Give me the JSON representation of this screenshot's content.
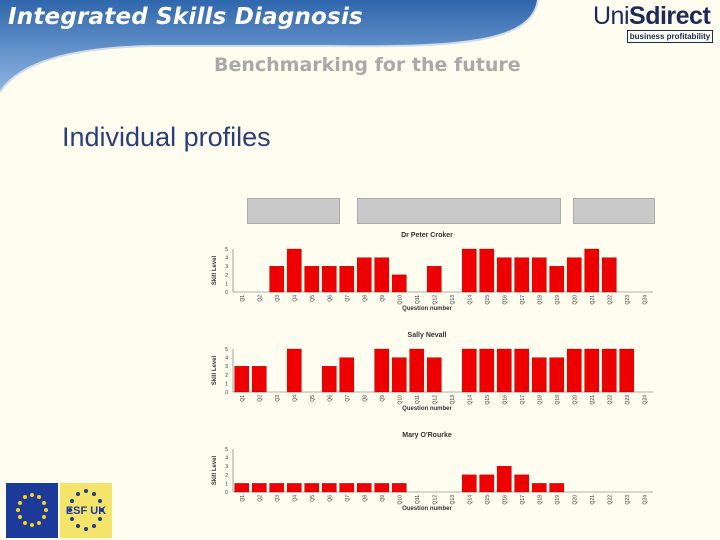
{
  "header": {
    "title": "Integrated Skills Diagnosis",
    "subtitle": "Benchmarking for the future",
    "logo_left": "Uni",
    "logo_right": "Sdirect",
    "tagline": "business profitability"
  },
  "page": {
    "heading": "Individual profiles"
  },
  "colors": {
    "bar": "#ee0000",
    "banner": "#3a74b8",
    "heading": "#2a3f7a"
  },
  "chart_data": [
    {
      "type": "bar",
      "title": "Dr Peter Croker",
      "xlabel": "Question number",
      "ylabel": "Skill Level",
      "ylim": [
        0,
        5
      ],
      "yticks": [
        "0",
        "1",
        "2",
        "3",
        "4",
        "5"
      ],
      "categories": [
        "Q1",
        "Q2",
        "Q3",
        "Q4",
        "Q5",
        "Q6",
        "Q7",
        "Q8",
        "Q9",
        "Q10",
        "Q11",
        "Q12",
        "Q13",
        "Q14",
        "Q15",
        "Q16",
        "Q17",
        "Q18",
        "Q19",
        "Q20",
        "Q21",
        "Q22",
        "Q23",
        "Q24"
      ],
      "values": [
        0,
        0,
        3,
        5,
        3,
        3,
        3,
        4,
        4,
        2,
        0,
        3,
        0,
        5,
        5,
        4,
        4,
        4,
        3,
        4,
        5,
        4,
        0,
        0
      ]
    },
    {
      "type": "bar",
      "title": "Sally Nevall",
      "xlabel": "Question number",
      "ylabel": "Skill Level",
      "ylim": [
        0,
        5
      ],
      "yticks": [
        "0",
        "1",
        "2",
        "3",
        "4",
        "5"
      ],
      "categories": [
        "Q1",
        "Q2",
        "Q3",
        "Q4",
        "Q5",
        "Q6",
        "Q7",
        "Q8",
        "Q9",
        "Q10",
        "Q11",
        "Q12",
        "Q13",
        "Q14",
        "Q15",
        "Q16",
        "Q17",
        "Q18",
        "Q19",
        "Q20",
        "Q21",
        "Q22",
        "Q23",
        "Q24"
      ],
      "values": [
        3,
        3,
        0,
        5,
        0,
        3,
        4,
        0,
        5,
        4,
        5,
        4,
        0,
        5,
        5,
        5,
        5,
        4,
        4,
        5,
        5,
        5,
        5,
        0
      ]
    },
    {
      "type": "bar",
      "title": "Mary O'Rourke",
      "xlabel": "Question number",
      "ylabel": "Skill Level",
      "ylim": [
        0,
        5
      ],
      "yticks": [
        "0",
        "1",
        "2",
        "3",
        "4",
        "5"
      ],
      "categories": [
        "Q1",
        "Q2",
        "Q3",
        "Q4",
        "Q5",
        "Q6",
        "Q7",
        "Q8",
        "Q9",
        "Q10",
        "Q11",
        "Q12",
        "Q13",
        "Q14",
        "Q15",
        "Q16",
        "Q17",
        "Q18",
        "Q19",
        "Q20",
        "Q21",
        "Q22",
        "Q23",
        "Q24"
      ],
      "values": [
        1,
        1,
        1,
        1,
        1,
        1,
        1,
        1,
        1,
        1,
        0,
        0,
        0,
        2,
        2,
        3,
        2,
        1,
        1,
        0,
        0,
        0,
        0,
        0
      ]
    }
  ],
  "footer": {
    "esf_logo": "ESF UK"
  }
}
